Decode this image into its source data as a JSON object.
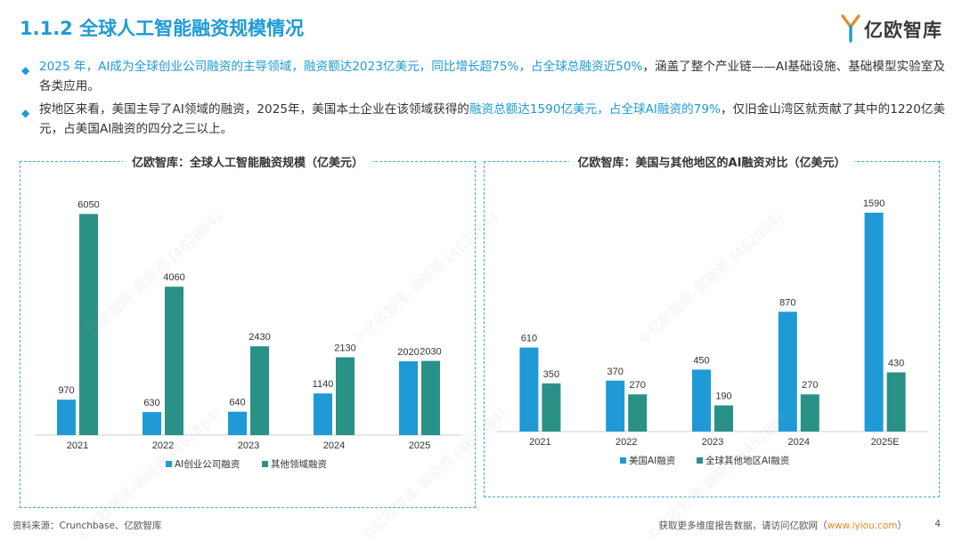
{
  "header": {
    "title": "1.1.2 全球人工智能融资规模情况",
    "logo_text": "亿欧智库"
  },
  "bullets": [
    {
      "parts": [
        {
          "text": "2025 年，AI成为全球创业公司融资的主导领域，融资额达2023亿美元，同比增长超75%，占全球总融资近50%",
          "hl": true
        },
        {
          "text": "，涵盖了整个产业链——AI基础设施、基础模型实验室及各类应用。",
          "hl": false
        }
      ]
    },
    {
      "parts": [
        {
          "text": "按地区来看，美国主导了AI领域的融资，2025年，美国本土企业在该领域获得的",
          "hl": false
        },
        {
          "text": "融资总额达1590亿美元，占全球AI融资的79%",
          "hl": true
        },
        {
          "text": "，仅旧金山湾区就贡献了其中的1220亿美元，占美国AI融资的四分之三以上。",
          "hl": false
        }
      ]
    }
  ],
  "watermark_text": "©亿欧智库-郭晓燕 (462884)",
  "chart_data": [
    {
      "type": "bar",
      "title": "亿欧智库：全球人工智能融资规模（亿美元）",
      "categories": [
        "2021",
        "2022",
        "2023",
        "2024",
        "2025"
      ],
      "series": [
        {
          "name": "AI创业公司融资",
          "values": [
            970,
            630,
            640,
            1140,
            2020
          ],
          "color": "#1f9ad6"
        },
        {
          "name": "其他领域融资",
          "values": [
            6050,
            4060,
            2430,
            2130,
            2030
          ],
          "color": "#2a9187"
        }
      ],
      "ylim": [
        0,
        6500
      ],
      "grid": false,
      "legend": "bottom"
    },
    {
      "type": "bar",
      "title": "亿欧智库：美国与其他地区的AI融资对比（亿美元）",
      "categories": [
        "2021",
        "2022",
        "2023",
        "2024",
        "2025E"
      ],
      "series": [
        {
          "name": "美国AI融资",
          "values": [
            610,
            370,
            450,
            870,
            1590
          ],
          "color": "#1f9ad6"
        },
        {
          "name": "全球其他地区AI融资",
          "values": [
            350,
            270,
            190,
            270,
            430
          ],
          "color": "#2a9187"
        }
      ],
      "ylim": [
        0,
        1700
      ],
      "grid": false,
      "legend": "bottom"
    }
  ],
  "footer": {
    "source": "资料来源：Crunchbase、亿欧智库",
    "right_text": "获取更多维度报告数据，请访问亿欧网（",
    "right_link": "www.iyiou.com",
    "right_end": "）",
    "page_number": "4"
  }
}
